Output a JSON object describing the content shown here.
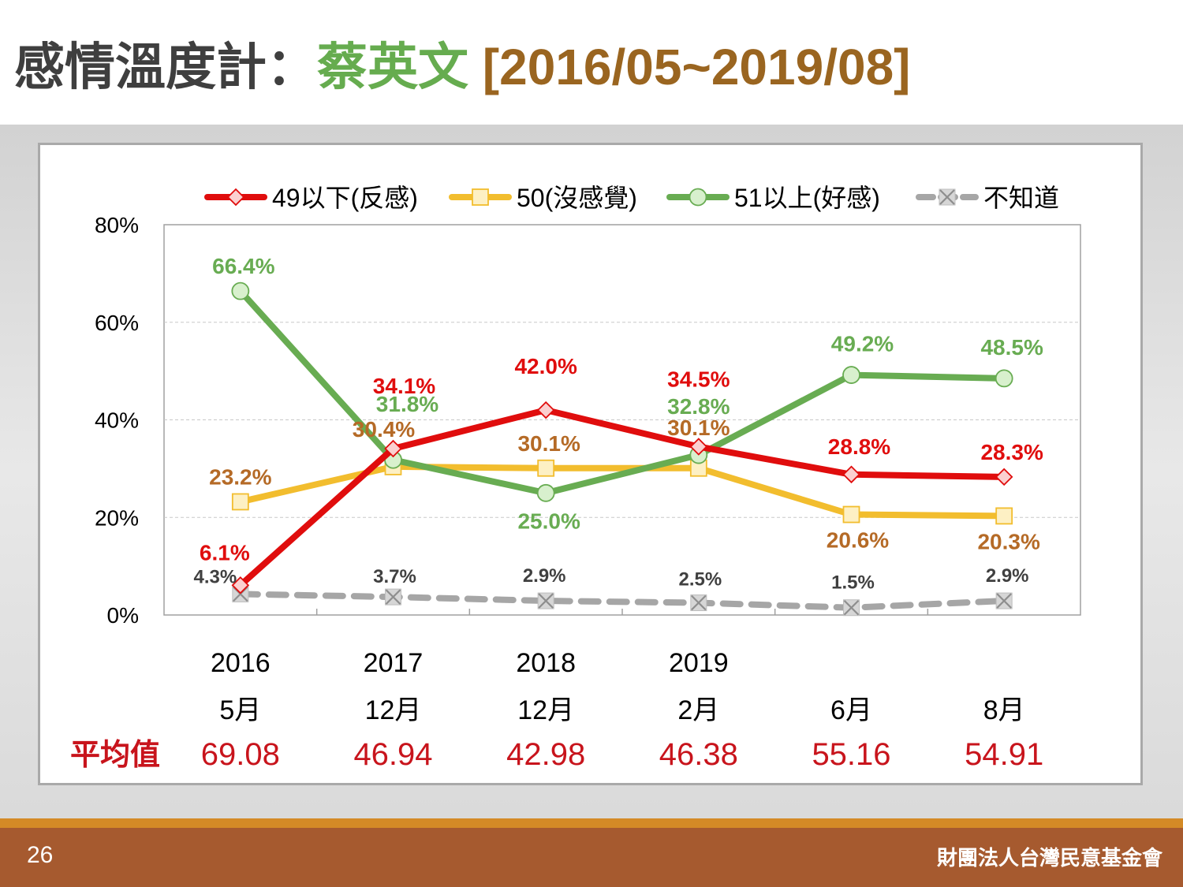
{
  "header": {
    "title_main": "感情溫度計：",
    "title_name": "蔡英文",
    "title_range": " [2016/05~2019/08]"
  },
  "footer": {
    "page_number": "26",
    "organization": "財團法人台灣民意基金會"
  },
  "colors": {
    "negative": "#e00d0d",
    "neutral": "#f2bd2e",
    "positive": "#68ac52",
    "unknown": "#a6a6a6",
    "neutral_label": "#b56a26",
    "unknown_label": "#404040",
    "average": "#c8141c"
  },
  "chart_data": {
    "type": "line",
    "x_years": [
      "2016",
      "2017",
      "2018",
      "2019",
      "",
      ""
    ],
    "x_months": [
      "5月",
      "12月",
      "12月",
      "2月",
      "6月",
      "8月"
    ],
    "ylim": [
      0,
      80
    ],
    "yticks": [
      "0%",
      "20%",
      "40%",
      "60%",
      "80%"
    ],
    "grid": true,
    "legend_position": "top",
    "series": [
      {
        "name": "49以下(反感)",
        "key": "negative",
        "marker": "diamond",
        "values": [
          6.1,
          34.1,
          42.0,
          34.5,
          28.8,
          28.3
        ],
        "labels": [
          "6.1%",
          "34.1%",
          "42.0%",
          "34.5%",
          "28.8%",
          "28.3%"
        ]
      },
      {
        "name": "50(沒感覺)",
        "key": "neutral",
        "marker": "square",
        "values": [
          23.2,
          30.4,
          30.1,
          30.1,
          20.6,
          20.3
        ],
        "labels": [
          "23.2%",
          "30.4%",
          "30.1%",
          "30.1%",
          "20.6%",
          "20.3%"
        ]
      },
      {
        "name": "51以上(好感)",
        "key": "positive",
        "marker": "circle",
        "values": [
          66.4,
          31.8,
          25.0,
          32.8,
          49.2,
          48.5
        ],
        "labels": [
          "66.4%",
          "31.8%",
          "25.0%",
          "32.8%",
          "49.2%",
          "48.5%"
        ]
      },
      {
        "name": "不知道",
        "key": "unknown",
        "marker": "x",
        "dashed": true,
        "values": [
          4.3,
          3.7,
          2.9,
          2.5,
          1.5,
          2.9
        ],
        "labels": [
          "4.3%",
          "3.7%",
          "2.9%",
          "2.5%",
          "1.5%",
          "2.9%"
        ]
      }
    ],
    "average_label": "平均值",
    "averages": [
      "69.08",
      "46.94",
      "42.98",
      "46.38",
      "55.16",
      "54.91"
    ]
  }
}
